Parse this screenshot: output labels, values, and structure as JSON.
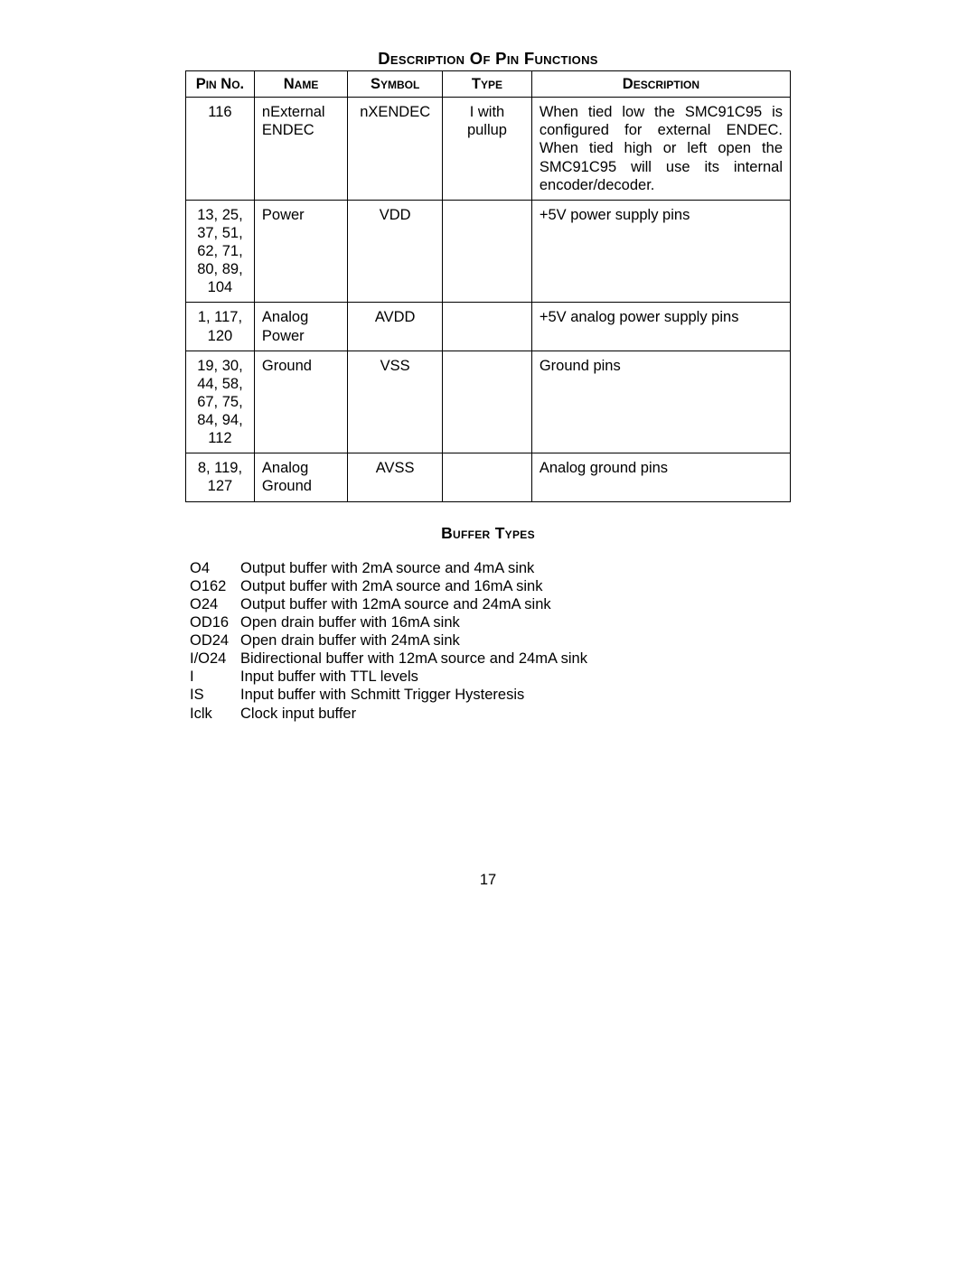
{
  "pinTable": {
    "title": "Description Of Pin Functions",
    "columns": [
      "Pin No.",
      "Name",
      "Symbol",
      "Type",
      "Description"
    ],
    "rows": [
      {
        "pin": "116",
        "name": "nExternal ENDEC",
        "symbol": "nXENDEC",
        "type": "I with pullup",
        "description": "When tied low the SMC91C95 is configured for external ENDEC. When tied high or left open the SMC91C95 will use its internal encoder/decoder."
      },
      {
        "pin": "13, 25, 37, 51, 62, 71, 80, 89, 104",
        "name": "Power",
        "symbol": "VDD",
        "type": "",
        "description": "+5V power supply pins"
      },
      {
        "pin": "1, 117, 120",
        "name": "Analog Power",
        "symbol": "AVDD",
        "type": "",
        "description": "+5V analog power supply pins"
      },
      {
        "pin": "19, 30, 44, 58, 67, 75, 84, 94, 112",
        "name": "Ground",
        "symbol": "VSS",
        "type": "",
        "description": "Ground pins"
      },
      {
        "pin": "8, 119, 127",
        "name": "Analog Ground",
        "symbol": "AVSS",
        "type": "",
        "description": "Analog ground pins"
      }
    ]
  },
  "bufferTypes": {
    "title": "Buffer Types",
    "items": [
      {
        "code": "O4",
        "desc": "Output buffer with 2mA source and 4mA sink"
      },
      {
        "code": "O162",
        "desc": "Output buffer with 2mA source and 16mA sink"
      },
      {
        "code": "O24",
        "desc": "Output buffer with 12mA source and 24mA sink"
      },
      {
        "code": "OD16",
        "desc": "Open drain buffer with 16mA sink"
      },
      {
        "code": "OD24",
        "desc": "Open drain buffer with 24mA sink"
      },
      {
        "code": "I/O24",
        "desc": "Bidirectional buffer with 12mA source and 24mA sink"
      },
      {
        "code": "I",
        "desc": "Input buffer with TTL levels"
      },
      {
        "code": "IS",
        "desc": "Input buffer with Schmitt Trigger Hysteresis"
      },
      {
        "code": "Iclk",
        "desc": "Clock input buffer"
      }
    ]
  },
  "pageNumber": "17"
}
